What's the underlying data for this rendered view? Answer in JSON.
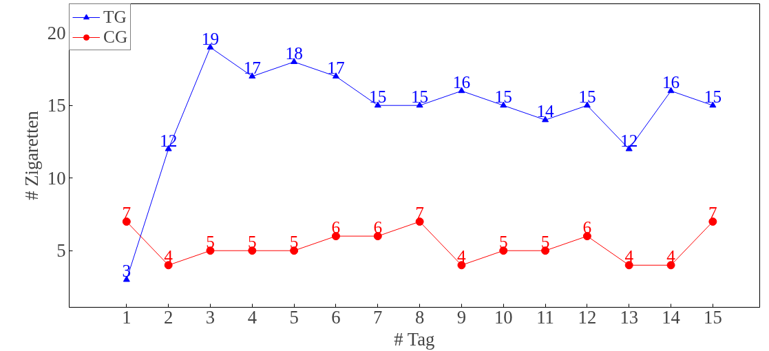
{
  "chart_data": {
    "type": "line",
    "xlabel": "# Tag",
    "ylabel": "# Zigaretten",
    "x": [
      1,
      2,
      3,
      4,
      5,
      6,
      7,
      8,
      9,
      10,
      11,
      12,
      13,
      14,
      15
    ],
    "series": [
      {
        "name": "TG",
        "color": "#0000ff",
        "marker": "triangle",
        "values": [
          3,
          12,
          19,
          17,
          18,
          17,
          15,
          15,
          16,
          15,
          14,
          15,
          12,
          16,
          15
        ]
      },
      {
        "name": "CG",
        "color": "#ff0000",
        "marker": "circle",
        "values": [
          7,
          4,
          5,
          5,
          5,
          6,
          6,
          7,
          4,
          5,
          5,
          6,
          4,
          4,
          7
        ]
      }
    ],
    "xlim": [
      -0.37,
      16.12
    ],
    "ylim": [
      1.1,
      22.0
    ],
    "xticks": [
      1,
      2,
      3,
      4,
      5,
      6,
      7,
      8,
      9,
      10,
      11,
      12,
      13,
      14,
      15
    ],
    "yticks": [
      5,
      10,
      15,
      20
    ],
    "grid": false,
    "legend": "top left",
    "data_labels": true,
    "line_style": "solid"
  }
}
